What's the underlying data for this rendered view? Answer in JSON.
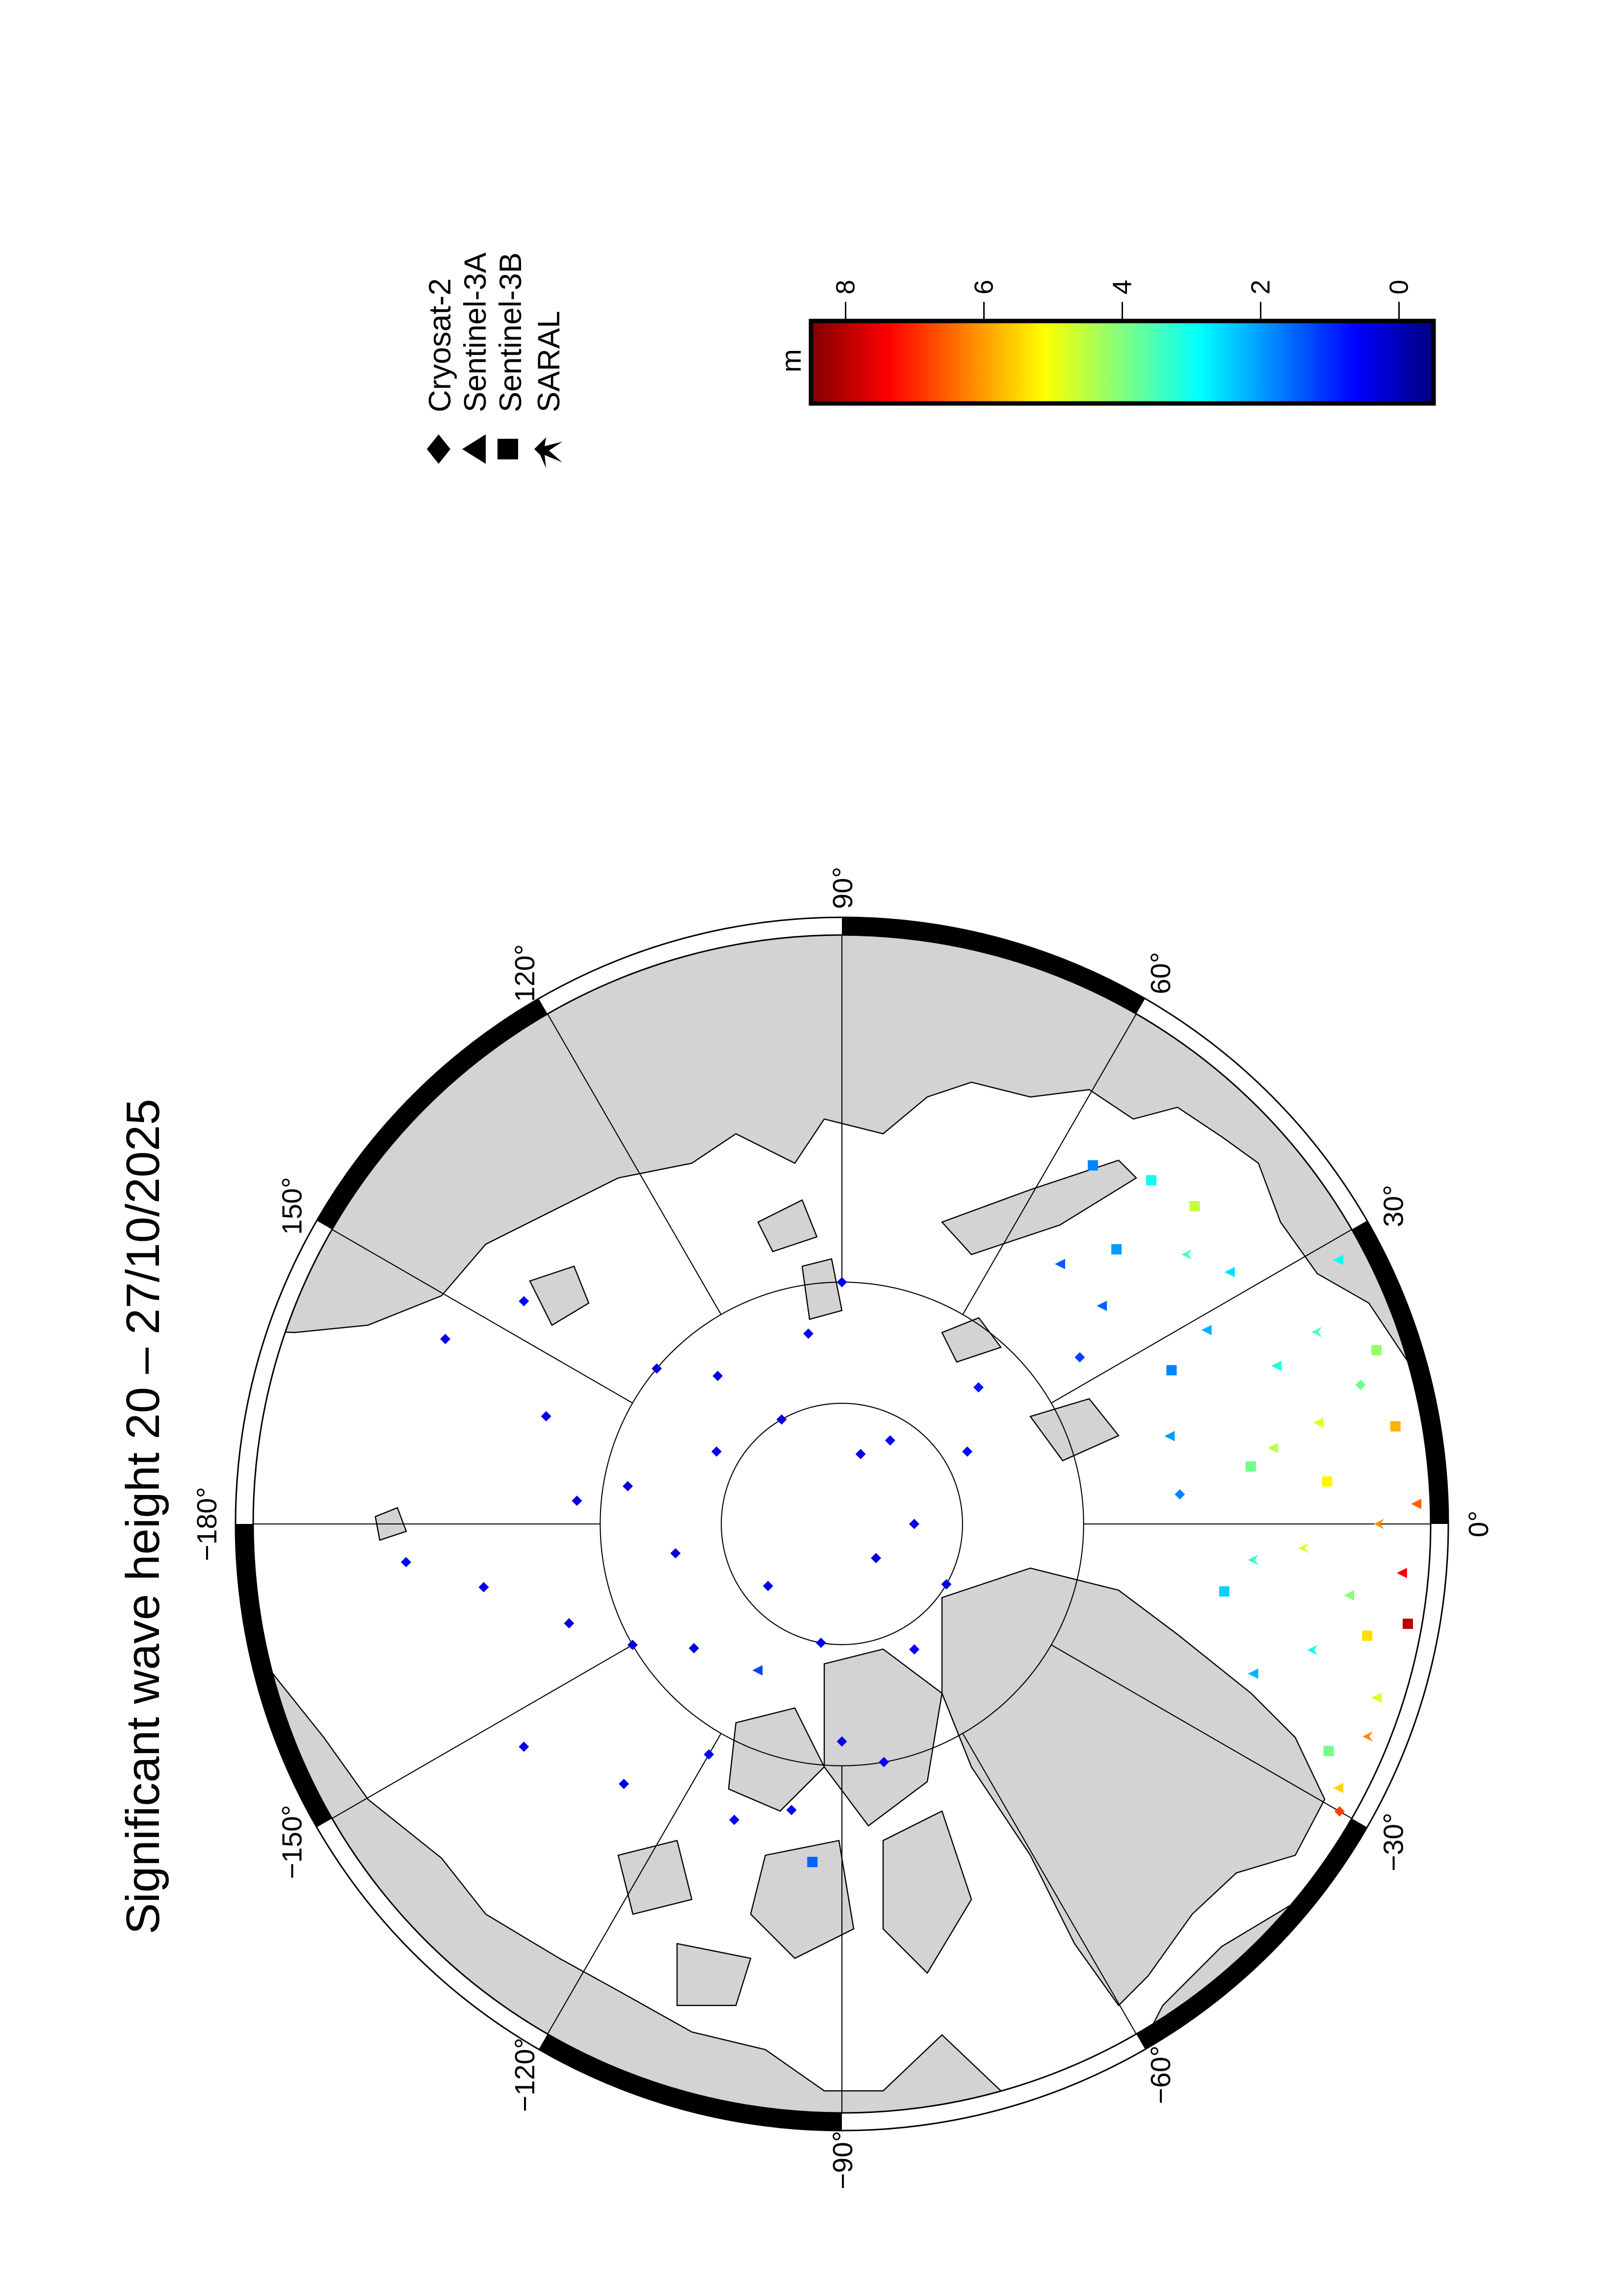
{
  "title": "Significant wave height 20 – 27/10/2025",
  "legend": {
    "items": [
      {
        "label": "Cryosat-2",
        "symbol": "diamond"
      },
      {
        "label": "Sentinel-3A",
        "symbol": "triangle"
      },
      {
        "label": "Sentinel-3B",
        "symbol": "square"
      },
      {
        "label": "SARAL",
        "symbol": "star"
      }
    ]
  },
  "colorbar": {
    "unit": "m",
    "ticks": [
      "8",
      "6",
      "4",
      "2",
      "0"
    ],
    "tick_values": [
      8,
      6,
      4,
      2,
      0
    ],
    "range": [
      -0.5,
      8.5
    ],
    "colormap": "jet",
    "colors": [
      "#800000",
      "#ff0000",
      "#ff8000",
      "#ffff00",
      "#80ff80",
      "#00ffff",
      "#0080ff",
      "#0000ff",
      "#000080"
    ]
  },
  "map": {
    "projection": "north polar stereographic",
    "land_color": "#d3d3d3",
    "ocean_color": "#ffffff",
    "latitude_circles": [
      85,
      80
    ],
    "longitude_labels": [
      {
        "lon": 0,
        "text": "0°"
      },
      {
        "lon": 30,
        "text": "30°"
      },
      {
        "lon": 60,
        "text": "60°"
      },
      {
        "lon": 90,
        "text": "90°"
      },
      {
        "lon": 120,
        "text": "120°"
      },
      {
        "lon": 150,
        "text": "150°"
      },
      {
        "lon": 180,
        "text": "−180°"
      },
      {
        "lon": -150,
        "text": "−150°"
      },
      {
        "lon": -120,
        "text": "−120°"
      },
      {
        "lon": -90,
        "text": "−90°"
      },
      {
        "lon": -60,
        "text": "−60°"
      },
      {
        "lon": -30,
        "text": "−30°"
      }
    ]
  },
  "chart_data": {
    "type": "scatter",
    "title": "Significant wave height 20 – 27/10/2025",
    "value_unit": "m",
    "color_range": [
      -0.5,
      8.5
    ],
    "fields": [
      "lon",
      "lat",
      "hs_m",
      "satellite"
    ],
    "points": [
      [
        120,
        85,
        0.4,
        "Cryosat-2"
      ],
      [
        150,
        84,
        0.5,
        "Cryosat-2"
      ],
      [
        -170,
        83,
        0.3,
        "Cryosat-2"
      ],
      [
        -140,
        86,
        0.4,
        "Cryosat-2"
      ],
      [
        -100,
        85,
        0.5,
        "Cryosat-2"
      ],
      [
        60,
        86,
        0.6,
        "Cryosat-2"
      ],
      [
        30,
        84,
        0.7,
        "Cryosat-2"
      ],
      [
        -30,
        85,
        0.4,
        "Cryosat-2"
      ],
      [
        170,
        81,
        0.3,
        "Cryosat-2"
      ],
      [
        -150,
        80,
        0.4,
        "Cryosat-2"
      ],
      [
        -120,
        79,
        0.5,
        "Cryosat-2"
      ],
      [
        140,
        80,
        0.3,
        "Cryosat-2"
      ],
      [
        100,
        82,
        0.5,
        "Cryosat-2"
      ],
      [
        -60,
        84,
        0.6,
        "Cryosat-2"
      ],
      [
        0,
        87,
        0.5,
        "Cryosat-2"
      ],
      [
        -90,
        81,
        0.4,
        "Cryosat-2"
      ],
      [
        -160,
        78,
        0.3,
        "Cryosat-2"
      ],
      [
        160,
        77,
        0.4,
        "Cryosat-2"
      ],
      [
        -130,
        76,
        0.5,
        "Cryosat-2"
      ],
      [
        -110,
        77,
        0.6,
        "Cryosat-2"
      ],
      [
        90,
        80,
        0.5,
        "Cryosat-2"
      ],
      [
        45,
        82,
        0.8,
        "Cryosat-2"
      ],
      [
        -170,
        75,
        0.4,
        "Cryosat-2"
      ],
      [
        -175,
        72,
        0.5,
        "Cryosat-2"
      ],
      [
        -145,
        74,
        0.4,
        "Cryosat-2"
      ],
      [
        175,
        79,
        0.3,
        "Cryosat-2"
      ],
      [
        -100,
        78,
        0.5,
        "Cryosat-2"
      ],
      [
        130,
        82,
        0.4,
        "Cryosat-2"
      ],
      [
        -80,
        80,
        0.6,
        "Cryosat-2"
      ],
      [
        -140,
        82,
        0.3,
        "Cryosat-2"
      ],
      [
        75,
        87,
        0.5,
        "Cryosat-2"
      ],
      [
        -45,
        88,
        0.4,
        "Cryosat-2"
      ],
      [
        -120,
        83,
        1.2,
        "Sentinel-3A"
      ],
      [
        -95,
        76,
        1.5,
        "Sentinel-3B"
      ],
      [
        145,
        74,
        0.6,
        "Cryosat-2"
      ],
      [
        155,
        72,
        0.5,
        "Cryosat-2"
      ],
      [
        40,
        76,
        1.5,
        "Sentinel-3A"
      ],
      [
        45,
        74,
        2.0,
        "Sentinel-3B"
      ],
      [
        55,
        72,
        1.8,
        "Sentinel-3B"
      ],
      [
        35,
        78,
        1.2,
        "Cryosat-2"
      ],
      [
        50,
        76,
        1.4,
        "Sentinel-3A"
      ],
      [
        38,
        72,
        3.5,
        "SARAL"
      ],
      [
        42,
        70.5,
        4.6,
        "Sentinel-3B"
      ],
      [
        33,
        71,
        2.6,
        "Sentinel-3A"
      ],
      [
        48,
        71,
        3.0,
        "Sentinel-3B"
      ],
      [
        28,
        73,
        2.2,
        "Sentinel-3A"
      ],
      [
        25,
        75,
        1.8,
        "Sentinel-3B"
      ],
      [
        10,
        72,
        4.5,
        "Sentinel-3A"
      ],
      [
        5,
        70,
        5.2,
        "Sentinel-3B"
      ],
      [
        0,
        68,
        6.1,
        "SARAL"
      ],
      [
        -5,
        67,
        7.4,
        "Sentinel-3A"
      ],
      [
        -10,
        66.5,
        8.0,
        "Sentinel-3B"
      ],
      [
        15,
        68,
        3.8,
        "Cryosat-2"
      ],
      [
        20,
        71,
        3.2,
        "Sentinel-3A"
      ],
      [
        -15,
        70,
        3.0,
        "SARAL"
      ],
      [
        -20,
        72,
        2.2,
        "Sentinel-3A"
      ],
      [
        10,
        67,
        5.8,
        "Sentinel-3B"
      ],
      [
        2,
        66.5,
        6.5,
        "Sentinel-3A"
      ],
      [
        -3,
        71,
        4.8,
        "SARAL"
      ],
      [
        -8,
        69,
        4.1,
        "Sentinel-3A"
      ],
      [
        -25,
        68,
        3.9,
        "Sentinel-3B"
      ],
      [
        -28,
        67,
        5.5,
        "Sentinel-3A"
      ],
      [
        -30,
        66.5,
        6.8,
        "Cryosat-2"
      ],
      [
        -10,
        74,
        2.5,
        "Sentinel-3B"
      ],
      [
        5,
        76,
        1.8,
        "Cryosat-2"
      ],
      [
        15,
        76,
        2.0,
        "Sentinel-3A"
      ],
      [
        22,
        69,
        3.5,
        "SARAL"
      ],
      [
        18,
        67,
        4.2,
        "Sentinel-3B"
      ],
      [
        -18,
        67,
        4.8,
        "Sentinel-3A"
      ],
      [
        8,
        73,
        3.9,
        "Sentinel-3B"
      ],
      [
        -5,
        73,
        3.3,
        "SARAL"
      ],
      [
        -22,
        66.8,
        6.2,
        "SARAL"
      ],
      [
        12,
        70,
        4.9,
        "Sentinel-3A"
      ],
      [
        -12,
        68,
        5.4,
        "Sentinel-3B"
      ],
      [
        28,
        67,
        2.9,
        "Sentinel-3A"
      ]
    ]
  }
}
